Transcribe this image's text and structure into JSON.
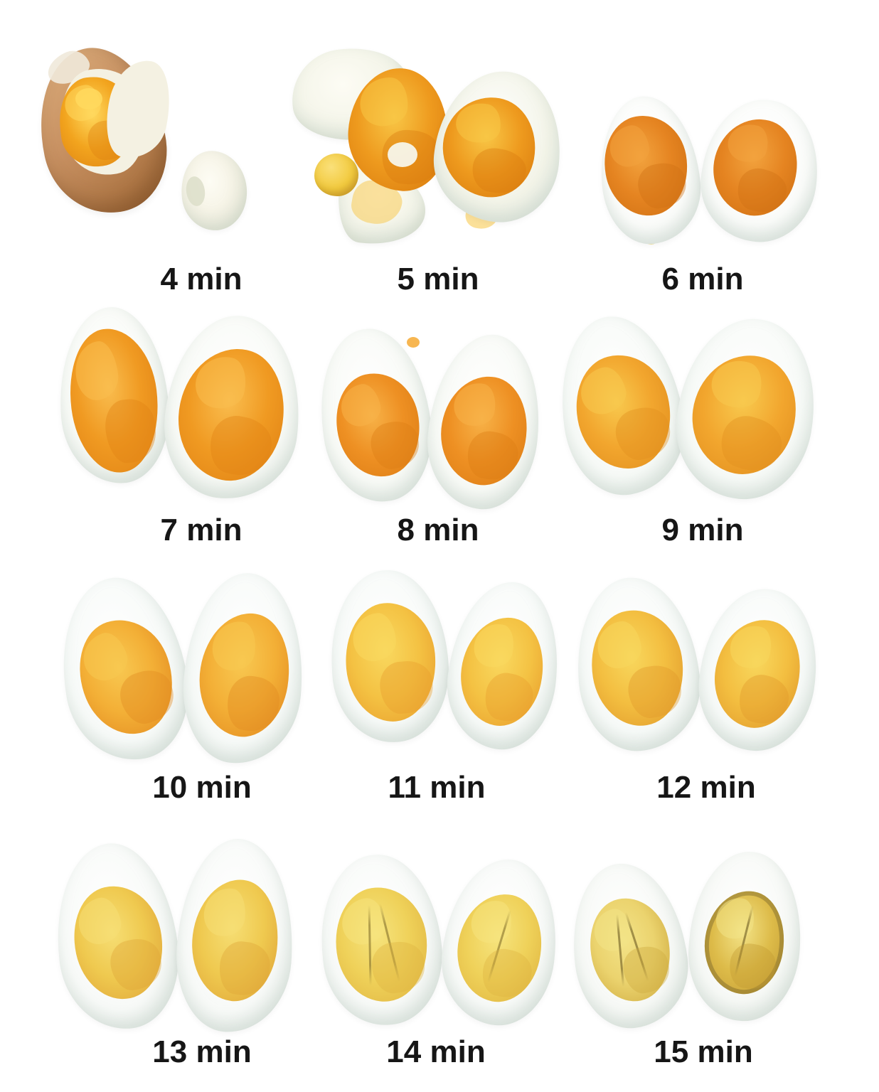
{
  "page": {
    "background": "#FFFFFF",
    "label_color": "#161616"
  },
  "chart_data": {
    "type": "table",
    "title": "",
    "categories": [
      "4 min",
      "5 min",
      "6 min",
      "7 min",
      "8 min",
      "9 min",
      "10 min",
      "11 min",
      "12 min",
      "13 min",
      "14 min",
      "15 min"
    ],
    "series": [
      {
        "name": "observed_yolk_color_hex",
        "values": [
          "#F2A41E",
          "#EE9A1E",
          "#E58421",
          "#F09A22",
          "#EE9023",
          "#F2A62E",
          "#F3AF36",
          "#F4C243",
          "#F3BE40",
          "#EFC94F",
          "#EFD159",
          "#EBD36E"
        ]
      },
      {
        "name": "egg_white_color_hex",
        "values": [
          "#F4F1E2",
          "#F3F4E8",
          "#FBFCFA",
          "#F8FAF6",
          "#F8FAF6",
          "#F7FAF7",
          "#F7FAF8",
          "#F7FAF8",
          "#F7FAF8",
          "#F8FAF8",
          "#F8FAF8",
          "#F7F9F6"
        ]
      }
    ],
    "layout": {
      "rows": 4,
      "columns": 3,
      "legend": "none",
      "axes": "none"
    }
  },
  "cells": [
    {
      "time": "4 min",
      "variant": "cracked-shell",
      "colors": {
        "shell": "#C79061",
        "shell_dark": "#A8703E",
        "white": "#F4F1E2",
        "yolk": "#F2A41E",
        "yolk_deep": "#DE8312",
        "yolk_light": "#FFD95E"
      }
    },
    {
      "time": "5 min",
      "variant": "broken-pieces",
      "colors": {
        "white": "#F3F4E8",
        "yolk": "#EE9A1E",
        "yolk_deep": "#D97B0E",
        "yolk_light": "#F8C646",
        "bead": "#F2CA3E"
      }
    },
    {
      "time": "6 min",
      "variant": "halves",
      "colors": {
        "white": "#FBFCFA",
        "yolk": "#E58421",
        "yolk_deep": "#CF7013",
        "yolk_light": "#F2A33E",
        "drip": "#F3E294"
      }
    },
    {
      "time": "7 min",
      "variant": "halves",
      "colors": {
        "white": "#F8FAF6",
        "yolk": "#F09A22",
        "yolk_deep": "#E08214",
        "yolk_light": "#F9BD4F"
      }
    },
    {
      "time": "8 min",
      "variant": "halves",
      "colors": {
        "white": "#F8FAF6",
        "yolk": "#EE9023",
        "yolk_deep": "#DC7D15",
        "yolk_light": "#F7B248"
      }
    },
    {
      "time": "9 min",
      "variant": "halves",
      "colors": {
        "white": "#F7FAF7",
        "yolk": "#F2A62E",
        "yolk_deep": "#E18E1E",
        "yolk_light": "#F8C94E"
      }
    },
    {
      "time": "10 min",
      "variant": "halves",
      "colors": {
        "white": "#F7FAF8",
        "yolk": "#F3AF36",
        "yolk_deep": "#E28A20",
        "yolk_light": "#F8C851"
      }
    },
    {
      "time": "11 min",
      "variant": "halves",
      "colors": {
        "white": "#F7FAF8",
        "yolk": "#F4C243",
        "yolk_deep": "#E89D2C",
        "yolk_light": "#F9D85F"
      }
    },
    {
      "time": "12 min",
      "variant": "halves",
      "colors": {
        "white": "#F7FAF8",
        "yolk": "#F3BE40",
        "yolk_deep": "#E0992B",
        "yolk_light": "#F8D75D"
      }
    },
    {
      "time": "13 min",
      "variant": "halves",
      "colors": {
        "white": "#F8FAF8",
        "yolk": "#EFC94F",
        "yolk_deep": "#DFA438",
        "yolk_light": "#F6DE74"
      }
    },
    {
      "time": "14 min",
      "variant": "halves",
      "colors": {
        "white": "#F8FAF8",
        "yolk": "#EFD159",
        "yolk_deep": "#DFB441",
        "yolk_light": "#F6E47E",
        "crack": "#8F7B33"
      }
    },
    {
      "time": "15 min",
      "variant": "halves",
      "colors": {
        "white": "#F7F9F6",
        "yolk": "#EBD36E",
        "yolk_deep": "#CDA93E",
        "yolk_light": "#F3E387",
        "yolk_alt": "#DDBB49",
        "yolk_alt_deep": "#C29B33",
        "crack": "#79672B",
        "ring": "#6E5C28"
      }
    }
  ]
}
